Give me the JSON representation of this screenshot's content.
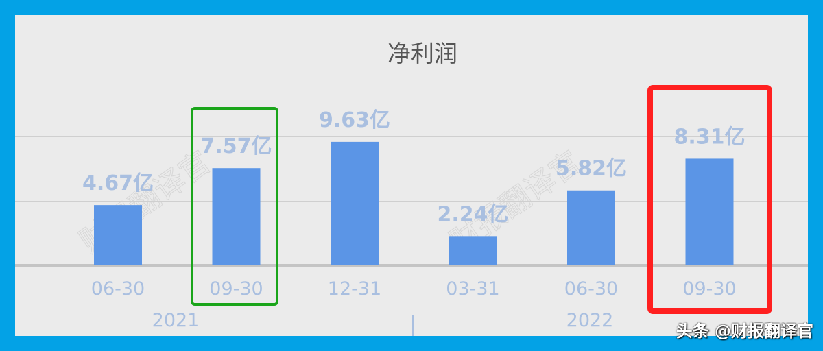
{
  "chart_data": {
    "type": "bar",
    "title": "净利润",
    "categories": [
      "06-30",
      "09-30",
      "12-31",
      "03-31",
      "06-30",
      "09-30"
    ],
    "groups": [
      {
        "label": "2021"
      },
      {
        "label": "2022"
      }
    ],
    "values": [
      4.67,
      7.57,
      9.63,
      2.24,
      5.82,
      8.31
    ],
    "data_labels": [
      "4.67亿",
      "7.57亿",
      "9.63亿",
      "2.24亿",
      "5.82亿",
      "8.31亿"
    ],
    "unit": "亿",
    "ylim": [
      0,
      10
    ],
    "grid": true,
    "highlights": [
      {
        "index": 1,
        "color": "#1aa51a"
      },
      {
        "index": 5,
        "color": "#ff2020"
      }
    ],
    "bar_color": "#5b95e6",
    "label_color": "#a9bfe0"
  },
  "watermark": "财报翻译官",
  "footer_credit": "头条 @财报翻译官"
}
